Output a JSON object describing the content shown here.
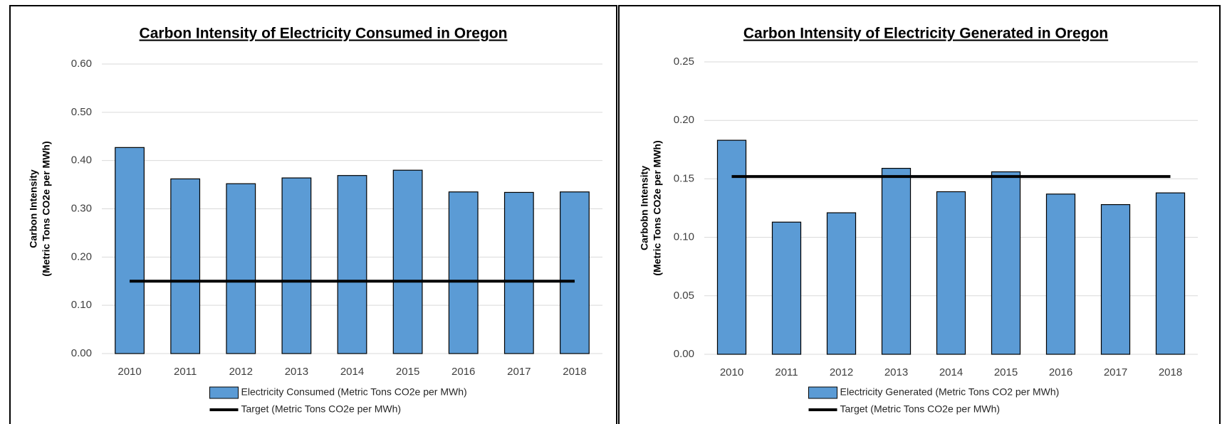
{
  "chart_data": [
    {
      "type": "bar",
      "title": "Carbon Intensity of Electricity Consumed in Oregon",
      "ylabel": [
        "Carbon Intensity",
        "(Metric Tons CO2e per MWh)"
      ],
      "categories": [
        "2010",
        "2011",
        "2012",
        "2013",
        "2014",
        "2015",
        "2016",
        "2017",
        "2018"
      ],
      "series": [
        {
          "name": "Electricity Consumed (Metric Tons CO2e per MWh)",
          "type": "bar",
          "color": "#5b9bd5",
          "values": [
            0.427,
            0.362,
            0.352,
            0.364,
            0.369,
            0.38,
            0.335,
            0.334,
            0.335
          ]
        },
        {
          "name": "Target (Metric Tons CO2e per MWh)",
          "type": "line",
          "color": "#000000",
          "values": [
            0.15,
            0.15,
            0.15,
            0.15,
            0.15,
            0.15,
            0.15,
            0.15,
            0.15
          ]
        }
      ],
      "ylim": [
        0,
        0.6
      ],
      "yticks": [
        {
          "value": 0,
          "label": "0.00"
        },
        {
          "value": 0.1,
          "label": "0.10"
        },
        {
          "value": 0.2,
          "label": "0.20"
        },
        {
          "value": 0.3,
          "label": "0.30"
        },
        {
          "value": 0.4,
          "label": "0.40"
        },
        {
          "value": 0.5,
          "label": "0.50"
        },
        {
          "value": 0.6,
          "label": "0.60"
        }
      ],
      "grid": true
    },
    {
      "type": "bar",
      "title": "Carbon Intensity of Electricity Generated in Oregon",
      "ylabel": [
        "Carbobn Intensity",
        "(Metric Tons CO2e per MWh)"
      ],
      "categories": [
        "2010",
        "2011",
        "2012",
        "2013",
        "2014",
        "2015",
        "2016",
        "2017",
        "2018"
      ],
      "series": [
        {
          "name": "Electricity Generated (Metric Tons CO2 per MWh)",
          "type": "bar",
          "color": "#5b9bd5",
          "values": [
            0.183,
            0.113,
            0.121,
            0.159,
            0.139,
            0.156,
            0.137,
            0.128,
            0.138
          ]
        },
        {
          "name": "Target (Metric Tons CO2e per MWh)",
          "type": "line",
          "color": "#000000",
          "values": [
            0.152,
            0.152,
            0.152,
            0.152,
            0.152,
            0.152,
            0.152,
            0.152,
            0.152
          ]
        }
      ],
      "ylim": [
        0,
        0.25
      ],
      "yticks": [
        {
          "value": 0,
          "label": "0.00"
        },
        {
          "value": 0.05,
          "label": "0.05"
        },
        {
          "value": 0.1,
          "label": "0.10"
        },
        {
          "value": 0.15,
          "label": "0.15"
        },
        {
          "value": 0.2,
          "label": "0.20"
        },
        {
          "value": 0.25,
          "label": "0.25"
        }
      ],
      "grid": true
    }
  ]
}
